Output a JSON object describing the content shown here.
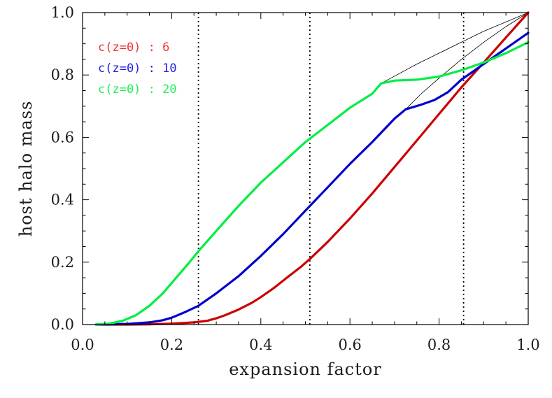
{
  "chart_data": {
    "type": "line",
    "xlabel": "expansion factor",
    "ylabel": "host halo mass",
    "xlim": [
      0.0,
      1.0
    ],
    "ylim": [
      0.0,
      1.0
    ],
    "x_ticks": [
      "0.0",
      "0.2",
      "0.4",
      "0.6",
      "0.8",
      "1.0"
    ],
    "y_ticks": [
      "0.0",
      "0.2",
      "0.4",
      "0.6",
      "0.8",
      "1.0"
    ],
    "grid": false,
    "legend_position": "top-left",
    "vertical_dotted_lines": [
      0.26,
      0.51,
      0.855
    ],
    "series": [
      {
        "name": "c(z=0) :  6",
        "color": "#cc0000",
        "x": [
          0.03,
          0.1,
          0.15,
          0.2,
          0.25,
          0.28,
          0.3,
          0.32,
          0.35,
          0.38,
          0.4,
          0.43,
          0.46,
          0.49,
          0.51,
          0.55,
          0.6,
          0.65,
          0.7,
          0.75,
          0.8,
          0.85,
          0.9,
          0.95,
          1.0
        ],
        "y": [
          0.0,
          0.0,
          0.001,
          0.003,
          0.007,
          0.012,
          0.02,
          0.03,
          0.048,
          0.07,
          0.088,
          0.118,
          0.152,
          0.185,
          0.21,
          0.265,
          0.34,
          0.42,
          0.505,
          0.59,
          0.675,
          0.76,
          0.84,
          0.92,
          1.0
        ]
      },
      {
        "name": "c(z=0) : 10",
        "color": "#0000cc",
        "x": [
          0.03,
          0.1,
          0.15,
          0.18,
          0.2,
          0.23,
          0.26,
          0.3,
          0.35,
          0.4,
          0.45,
          0.5,
          0.55,
          0.6,
          0.65,
          0.7,
          0.725,
          0.76,
          0.79,
          0.82,
          0.85,
          0.9,
          0.95,
          1.0
        ],
        "y": [
          0.0,
          0.002,
          0.007,
          0.014,
          0.022,
          0.04,
          0.06,
          0.1,
          0.155,
          0.22,
          0.29,
          0.365,
          0.44,
          0.515,
          0.585,
          0.66,
          0.69,
          0.705,
          0.72,
          0.745,
          0.785,
          0.835,
          0.885,
          0.935
        ]
      },
      {
        "name": "c(z=0) : 20",
        "color": "#00ee44",
        "x": [
          0.03,
          0.06,
          0.09,
          0.12,
          0.15,
          0.18,
          0.21,
          0.24,
          0.26,
          0.3,
          0.35,
          0.4,
          0.45,
          0.5,
          0.55,
          0.6,
          0.65,
          0.67,
          0.7,
          0.75,
          0.8,
          0.85,
          0.9,
          0.95,
          1.0
        ],
        "y": [
          0.0,
          0.003,
          0.012,
          0.03,
          0.06,
          0.1,
          0.15,
          0.2,
          0.235,
          0.3,
          0.38,
          0.455,
          0.52,
          0.585,
          0.64,
          0.695,
          0.74,
          0.773,
          0.782,
          0.785,
          0.795,
          0.815,
          0.84,
          0.87,
          0.905
        ]
      }
    ],
    "reference_curves": [
      {
        "color": "#000000",
        "x": [
          0.67,
          0.75,
          0.8,
          0.85,
          0.9,
          0.95,
          1.0
        ],
        "y": [
          0.773,
          0.835,
          0.87,
          0.905,
          0.94,
          0.97,
          1.0
        ]
      },
      {
        "color": "#000000",
        "x": [
          0.725,
          0.76,
          0.8,
          0.85,
          0.9,
          0.95,
          1.0
        ],
        "y": [
          0.69,
          0.74,
          0.79,
          0.85,
          0.905,
          0.955,
          1.0
        ]
      }
    ]
  }
}
